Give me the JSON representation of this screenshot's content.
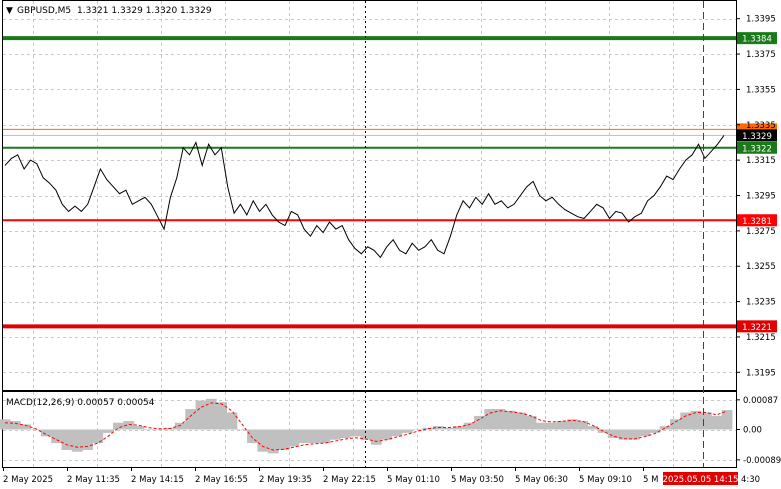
{
  "header": {
    "symbol": "GBPUSD,M5",
    "ohlc": "1.3321 1.3329 1.3320 1.3329",
    "toggle_icon": "triangle-down-icon"
  },
  "macd": {
    "label": "MACD(12,26,9) 0.00057 0.00054",
    "hist_color": "#c0c0c0",
    "signal_color": "#ff0000"
  },
  "price_axis": {
    "ticks": [
      "1.3395",
      "1.3375",
      "1.3355",
      "1.3335",
      "1.3315",
      "1.3295",
      "1.3275",
      "1.3255",
      "1.3235",
      "1.3215",
      "1.3195"
    ]
  },
  "macd_axis": {
    "ticks": [
      "0.00087",
      "0.00",
      "-0.00089"
    ]
  },
  "time_axis": {
    "labels": [
      "2 May 2025",
      "2 May 11:35",
      "2 May 14:15",
      "2 May 16:55",
      "2 May 19:35",
      "2 May 22:15",
      "5 May 01:10",
      "5 May 03:50",
      "5 May 06:30",
      "5 May 09:10",
      "5 M"
    ],
    "cursor_time": "2025.05.05 14:15",
    "tail": "4:30"
  },
  "levels": [
    {
      "price": "1.3384",
      "color": "#1a7a1a",
      "width": 4,
      "label_bg": "#1a7a1a",
      "label_color": "#ffffff"
    },
    {
      "price": "1.3329",
      "color": "#ff6a00",
      "width": 1,
      "label_bg": "#ff6a00",
      "label_color": "#ffffff",
      "hidden_label": true
    },
    {
      "price": "1.3329",
      "color": "#e0b0a0",
      "width": 1,
      "label_bg": "#000000",
      "label_color": "#ffffff"
    },
    {
      "price": "1.3322",
      "color": "#1a7a1a",
      "width": 2,
      "label_bg": "#1a7a1a",
      "label_color": "#ffffff"
    },
    {
      "price": "1.3281",
      "color": "#ff0000",
      "width": 2,
      "label_bg": "#ff0000",
      "label_color": "#ffffff"
    },
    {
      "price": "1.3221",
      "color": "#e00000",
      "width": 4,
      "label_bg": "#e00000",
      "label_color": "#ffffff"
    }
  ],
  "chart_data": {
    "type": "line",
    "xlabel": "",
    "ylabel": "",
    "ylim": [
      1.3185,
      1.3405
    ],
    "grid": true,
    "series": [
      {
        "name": "",
        "values": [
          1.3312,
          1.3316,
          1.3318,
          1.331,
          1.3315,
          1.3313,
          1.3305,
          1.3302,
          1.3298,
          1.329,
          1.3286,
          1.3289,
          1.3286,
          1.329,
          1.33,
          1.331,
          1.3304,
          1.33,
          1.3296,
          1.3298,
          1.329,
          1.3292,
          1.3294,
          1.329,
          1.3283,
          1.3276,
          1.3294,
          1.3305,
          1.3322,
          1.3318,
          1.3325,
          1.3312,
          1.3324,
          1.3318,
          1.3322,
          1.33,
          1.3285,
          1.329,
          1.3284,
          1.3292,
          1.3286,
          1.329,
          1.3284,
          1.328,
          1.3278,
          1.3286,
          1.3284,
          1.3276,
          1.3272,
          1.3278,
          1.3274,
          1.328,
          1.3276,
          1.3278,
          1.327,
          1.3265,
          1.3262,
          1.3266,
          1.3264,
          1.326,
          1.3266,
          1.327,
          1.3264,
          1.3262,
          1.3268,
          1.3264,
          1.3266,
          1.327,
          1.3264,
          1.3262,
          1.3272,
          1.3284,
          1.3292,
          1.3288,
          1.3294,
          1.329,
          1.3296,
          1.329,
          1.3292,
          1.3288,
          1.329,
          1.3295,
          1.33,
          1.3303,
          1.3295,
          1.3292,
          1.3294,
          1.329,
          1.3287,
          1.3285,
          1.3283,
          1.3282,
          1.3286,
          1.329,
          1.3288,
          1.3282,
          1.3286,
          1.3285,
          1.328,
          1.3283,
          1.3285,
          1.3292,
          1.3295,
          1.33,
          1.3306,
          1.3304,
          1.331,
          1.3315,
          1.3318,
          1.3324,
          1.3316,
          1.332,
          1.3324,
          1.3329
        ]
      }
    ],
    "macd_hist": [
      0.0003,
      0.00025,
      0.00015,
      0.0,
      -0.0002,
      -0.0004,
      -0.0006,
      -0.00065,
      -0.0006,
      -0.0004,
      -0.0001,
      0.0002,
      0.00025,
      0.0001,
      0.0,
      0.0,
      5e-05,
      0.0002,
      0.0006,
      0.00085,
      0.0009,
      0.0008,
      0.0005,
      0.0,
      -0.0004,
      -0.00065,
      -0.0007,
      -0.0006,
      -0.0005,
      -0.0004,
      -0.0004,
      -0.0004,
      -0.0003,
      -0.00025,
      -0.0002,
      -0.0003,
      -0.00045,
      -0.0003,
      -0.0002,
      -0.0001,
      0.0,
      5e-05,
      0.0001,
      5e-05,
      0.0001,
      0.0002,
      0.0004,
      0.0006,
      0.0006,
      0.00055,
      0.0005,
      0.0004,
      0.0002,
      0.0002,
      0.00025,
      0.0003,
      0.00025,
      0.0001,
      -0.0001,
      -0.00025,
      -0.0003,
      -0.0003,
      -0.0002,
      -0.0001,
      0.0001,
      0.0003,
      0.0005,
      0.00055,
      0.0005,
      0.0004,
      0.00057
    ],
    "macd_signal": [
      0.0002,
      0.00018,
      0.00012,
      2e-05,
      -0.00015,
      -0.0003,
      -0.00045,
      -0.00052,
      -0.0005,
      -0.0004,
      -0.0002,
      5e-05,
      0.00015,
      0.00012,
      5e-05,
      2e-05,
      3e-05,
      0.00012,
      0.0004,
      0.00065,
      0.00078,
      0.00075,
      0.00055,
      0.00015,
      -0.00025,
      -0.0005,
      -0.0006,
      -0.00058,
      -0.00052,
      -0.00045,
      -0.00042,
      -0.0004,
      -0.00034,
      -0.00028,
      -0.00024,
      -0.00028,
      -0.00035,
      -0.0003,
      -0.00022,
      -0.00014,
      -5e-05,
      2e-05,
      6e-05,
      6e-05,
      8e-05,
      0.00014,
      0.0003,
      0.00048,
      0.00055,
      0.00052,
      0.00048,
      0.0004,
      0.00026,
      0.00022,
      0.00024,
      0.00027,
      0.00024,
      0.00012,
      -5e-05,
      -0.0002,
      -0.00027,
      -0.00028,
      -0.00021,
      -0.00012,
      4e-05,
      0.00022,
      0.0004,
      0.0005,
      0.0005,
      0.00043,
      0.00054
    ]
  }
}
